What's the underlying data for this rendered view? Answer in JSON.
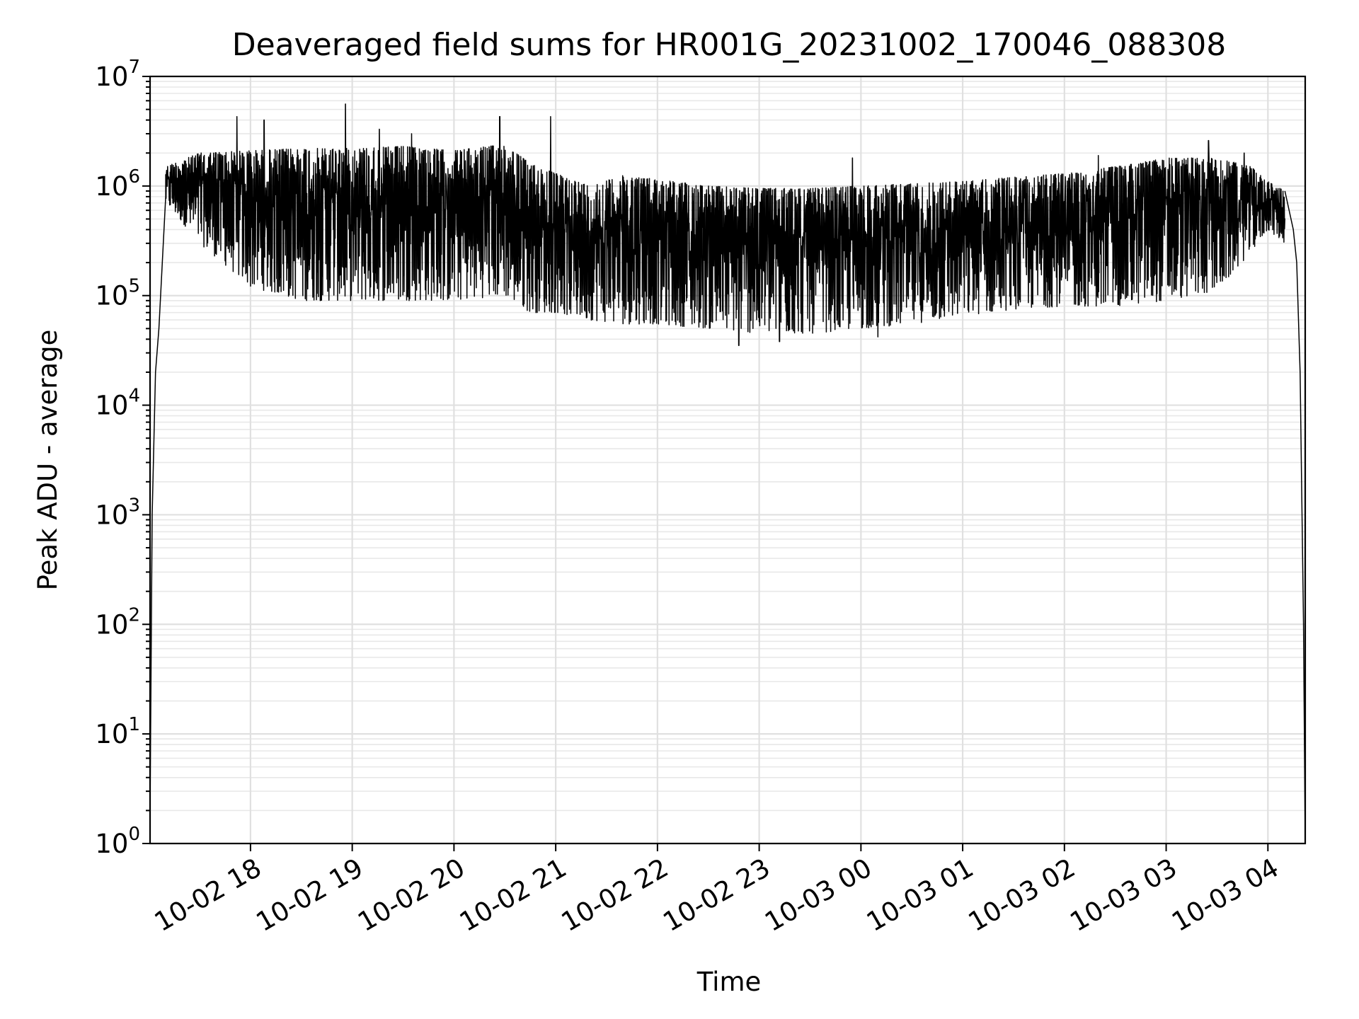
{
  "chart_data": {
    "type": "line",
    "title": "Deaveraged field sums for HR001G_20231002_170046_088308",
    "xlabel": "Time",
    "ylabel": "Peak ADU - average",
    "yscale": "log",
    "ylim": [
      1,
      10000000
    ],
    "xlim": [
      "2023-10-02 17:00:46",
      "2023-10-03 04:22:00"
    ],
    "grid": true,
    "x_ticks": [
      {
        "t": "2023-10-02 18:00",
        "label": "10-02 18"
      },
      {
        "t": "2023-10-02 19:00",
        "label": "10-02 19"
      },
      {
        "t": "2023-10-02 20:00",
        "label": "10-02 20"
      },
      {
        "t": "2023-10-02 21:00",
        "label": "10-02 21"
      },
      {
        "t": "2023-10-02 22:00",
        "label": "10-02 22"
      },
      {
        "t": "2023-10-02 23:00",
        "label": "10-02 23"
      },
      {
        "t": "2023-10-03 00:00",
        "label": "10-03 00"
      },
      {
        "t": "2023-10-03 01:00",
        "label": "10-03 01"
      },
      {
        "t": "2023-10-03 02:00",
        "label": "10-03 02"
      },
      {
        "t": "2023-10-03 03:00",
        "label": "10-03 03"
      },
      {
        "t": "2023-10-03 04:00",
        "label": "10-03 04"
      }
    ],
    "y_ticks": [
      {
        "value": 1,
        "base": "10",
        "exp": "0"
      },
      {
        "value": 10,
        "base": "10",
        "exp": "1"
      },
      {
        "value": 100,
        "base": "10",
        "exp": "2"
      },
      {
        "value": 1000,
        "base": "10",
        "exp": "3"
      },
      {
        "value": 10000,
        "base": "10",
        "exp": "4"
      },
      {
        "value": 100000,
        "base": "10",
        "exp": "5"
      },
      {
        "value": 1000000,
        "base": "10",
        "exp": "6"
      },
      {
        "value": 10000000,
        "base": "10",
        "exp": "7"
      }
    ],
    "series": [
      {
        "color": "#000000",
        "envelope": [
          {
            "t": "2023-10-02 17:10",
            "upper": 1500000,
            "lower": 700000
          },
          {
            "t": "2023-10-02 17:30",
            "upper": 2000000,
            "lower": 300000
          },
          {
            "t": "2023-10-02 18:00",
            "upper": 2100000,
            "lower": 120000
          },
          {
            "t": "2023-10-02 18:30",
            "upper": 2200000,
            "lower": 90000
          },
          {
            "t": "2023-10-02 19:00",
            "upper": 2200000,
            "lower": 90000
          },
          {
            "t": "2023-10-02 19:30",
            "upper": 2300000,
            "lower": 90000
          },
          {
            "t": "2023-10-02 20:00",
            "upper": 2100000,
            "lower": 90000
          },
          {
            "t": "2023-10-02 20:30",
            "upper": 2400000,
            "lower": 100000
          },
          {
            "t": "2023-10-02 20:45",
            "upper": 1600000,
            "lower": 70000
          },
          {
            "t": "2023-10-02 21:00",
            "upper": 1300000,
            "lower": 70000
          },
          {
            "t": "2023-10-02 21:20",
            "upper": 1000000,
            "lower": 60000
          },
          {
            "t": "2023-10-02 21:40",
            "upper": 1250000,
            "lower": 55000
          },
          {
            "t": "2023-10-02 22:00",
            "upper": 1150000,
            "lower": 55000
          },
          {
            "t": "2023-10-02 22:30",
            "upper": 1000000,
            "lower": 50000
          },
          {
            "t": "2023-10-02 23:00",
            "upper": 950000,
            "lower": 45000
          },
          {
            "t": "2023-10-02 23:30",
            "upper": 950000,
            "lower": 45000
          },
          {
            "t": "2023-10-03 00:00",
            "upper": 1000000,
            "lower": 50000
          },
          {
            "t": "2023-10-03 00:30",
            "upper": 1050000,
            "lower": 55000
          },
          {
            "t": "2023-10-03 01:00",
            "upper": 1100000,
            "lower": 65000
          },
          {
            "t": "2023-10-03 01:30",
            "upper": 1200000,
            "lower": 75000
          },
          {
            "t": "2023-10-03 02:00",
            "upper": 1300000,
            "lower": 80000
          },
          {
            "t": "2023-10-03 02:30",
            "upper": 1500000,
            "lower": 80000
          },
          {
            "t": "2023-10-03 03:00",
            "upper": 1800000,
            "lower": 90000
          },
          {
            "t": "2023-10-03 03:30",
            "upper": 1800000,
            "lower": 110000
          },
          {
            "t": "2023-10-03 03:50",
            "upper": 1500000,
            "lower": 250000
          },
          {
            "t": "2023-10-03 04:00",
            "upper": 1100000,
            "lower": 400000
          },
          {
            "t": "2023-10-03 04:10",
            "upper": 900000,
            "lower": 300000
          }
        ],
        "edges": [
          {
            "t": "2023-10-02 17:00:46",
            "value": 2
          },
          {
            "t": "2023-10-02 17:02",
            "value": 1000
          },
          {
            "t": "2023-10-02 17:04",
            "value": 20000
          },
          {
            "t": "2023-10-02 17:06",
            "value": 50000
          },
          {
            "t": "2023-10-02 17:08",
            "value": 200000
          },
          {
            "t": "2023-10-02 17:10",
            "value": 800000
          },
          {
            "t": "2023-10-02 17:12",
            "value": 1400000
          },
          {
            "t": "2023-10-03 04:15",
            "value": 400000
          },
          {
            "t": "2023-10-03 04:17",
            "value": 200000
          },
          {
            "t": "2023-10-03 04:19",
            "value": 20000
          },
          {
            "t": "2023-10-03 04:21",
            "value": 100
          },
          {
            "t": "2023-10-03 04:22",
            "value": 1
          }
        ],
        "spikes": [
          {
            "t": "2023-10-02 17:52",
            "value": 4300000
          },
          {
            "t": "2023-10-02 18:08",
            "value": 4000000
          },
          {
            "t": "2023-10-02 18:56",
            "value": 5600000
          },
          {
            "t": "2023-10-02 19:16",
            "value": 3300000
          },
          {
            "t": "2023-10-02 19:35",
            "value": 3000000
          },
          {
            "t": "2023-10-02 20:27",
            "value": 4300000
          },
          {
            "t": "2023-10-02 20:57",
            "value": 4300000
          },
          {
            "t": "2023-10-02 22:26",
            "value": 1000000
          },
          {
            "t": "2023-10-02 23:55",
            "value": 1800000
          },
          {
            "t": "2023-10-03 02:20",
            "value": 1900000
          },
          {
            "t": "2023-10-03 03:25",
            "value": 2600000
          },
          {
            "t": "2023-10-03 03:46",
            "value": 2000000
          }
        ],
        "dips": [
          {
            "t": "2023-10-02 22:48",
            "value": 35000
          },
          {
            "t": "2023-10-02 23:12",
            "value": 38000
          },
          {
            "t": "2023-10-03 00:10",
            "value": 42000
          }
        ]
      }
    ]
  }
}
